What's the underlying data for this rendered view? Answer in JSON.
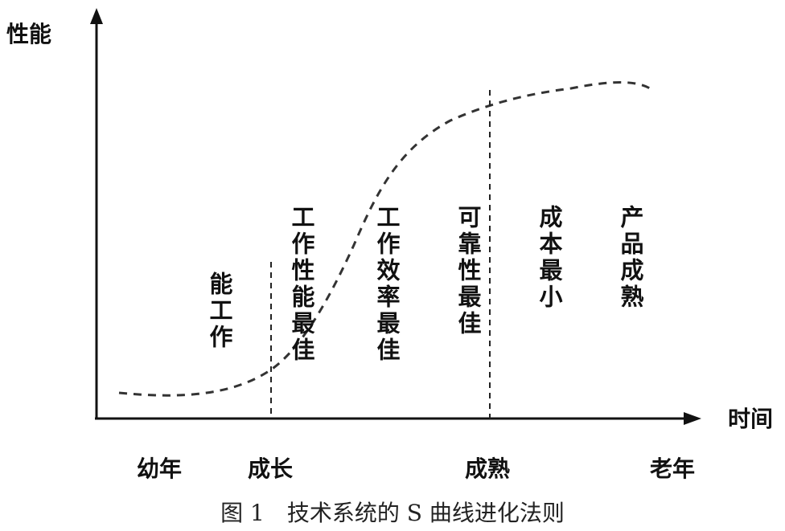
{
  "axes": {
    "y_label": "性能",
    "x_label": "时间"
  },
  "curve": {
    "style": "dashed",
    "shape": "S-curve"
  },
  "stages": [
    {
      "id": "infancy",
      "label": "幼年"
    },
    {
      "id": "growth",
      "label": "成长"
    },
    {
      "id": "maturity",
      "label": "成熟"
    },
    {
      "id": "old-age",
      "label": "老年"
    }
  ],
  "annotations": [
    {
      "id": "ann-1",
      "text": "能工作"
    },
    {
      "id": "ann-2",
      "text": "工作性能最佳"
    },
    {
      "id": "ann-3",
      "text": "工作效率最佳"
    },
    {
      "id": "ann-4",
      "text": "可靠性最佳"
    },
    {
      "id": "ann-5",
      "text": "成本最小"
    },
    {
      "id": "ann-6",
      "text": "产品成熟"
    }
  ],
  "caption": "图 1　技术系统的 S 曲线进化法则"
}
